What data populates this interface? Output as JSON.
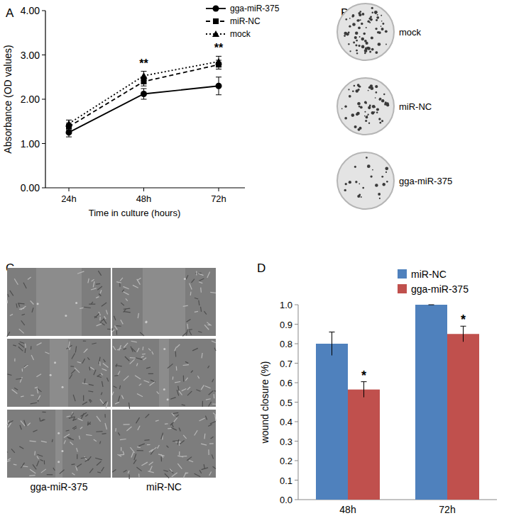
{
  "chart_data": [
    {
      "type": "line",
      "panel_label": "A",
      "x_label": "Time in culture (hours)",
      "y_label": "Absorbance (OD values)",
      "categories": [
        "24h",
        "48h",
        "72h"
      ],
      "series": [
        {
          "name": "gga-miR-375",
          "color": "#000000",
          "marker": "circle",
          "line_style": "solid",
          "values": [
            1.25,
            2.12,
            2.3
          ],
          "errors": [
            0.1,
            0.12,
            0.2
          ]
        },
        {
          "name": "miR-NC",
          "color": "#000000",
          "marker": "square",
          "line_style": "dashed",
          "values": [
            1.38,
            2.4,
            2.78
          ],
          "errors": [
            0.08,
            0.1,
            0.1
          ]
        },
        {
          "name": "mock",
          "color": "#000000",
          "marker": "triangle",
          "line_style": "dotted",
          "values": [
            1.45,
            2.53,
            2.85
          ],
          "errors": [
            0.08,
            0.1,
            0.12
          ]
        }
      ],
      "ylim": [
        0,
        4
      ],
      "yticks": [
        {
          "value": 0,
          "label": "0.00"
        },
        {
          "value": 1,
          "label": "1.00"
        },
        {
          "value": 2,
          "label": "2.00"
        },
        {
          "value": 3,
          "label": "3.00"
        },
        {
          "value": 4,
          "label": "4.00"
        }
      ],
      "grid": false,
      "legend": "top-right",
      "annotations": [
        {
          "category": "48h",
          "text": "**"
        },
        {
          "category": "72h",
          "text": "**"
        }
      ]
    },
    {
      "type": "bar",
      "panel_label": "D",
      "y_label": "wound closure (%)",
      "categories": [
        "48h",
        "72h"
      ],
      "series": [
        {
          "name": "miR-NC",
          "color": "#4f81bd",
          "values": [
            0.8,
            1.0
          ],
          "errors": [
            0.06,
            0
          ]
        },
        {
          "name": "gga-miR-375",
          "color": "#c0504d",
          "values": [
            0.565,
            0.85
          ],
          "errors": [
            0.04,
            0.04
          ]
        }
      ],
      "ylim": [
        0,
        1
      ],
      "yticks": [
        {
          "value": 0,
          "label": "0.0"
        },
        {
          "value": 0.1,
          "label": "0.1"
        },
        {
          "value": 0.2,
          "label": "0.2"
        },
        {
          "value": 0.3,
          "label": "0.3"
        },
        {
          "value": 0.4,
          "label": "0.4"
        },
        {
          "value": 0.5,
          "label": "0.5"
        },
        {
          "value": 0.6,
          "label": "0.6"
        },
        {
          "value": 0.7,
          "label": "0.7"
        },
        {
          "value": 0.8,
          "label": "0.8"
        },
        {
          "value": 0.9,
          "label": "0.9"
        },
        {
          "value": 1,
          "label": "1.0"
        }
      ],
      "grid": false,
      "legend": "top-right",
      "annotations": [
        {
          "category": "48h",
          "series": "gga-miR-375",
          "text": "*"
        },
        {
          "category": "72h",
          "series": "gga-miR-375",
          "text": "*"
        }
      ]
    }
  ],
  "plate_panel": {
    "label": "B",
    "plates": [
      "mock",
      "miR-NC",
      "gga-miR-375"
    ]
  },
  "wound_panel": {
    "label": "C",
    "columns": [
      "gga-miR-375",
      "miR-NC"
    ]
  }
}
